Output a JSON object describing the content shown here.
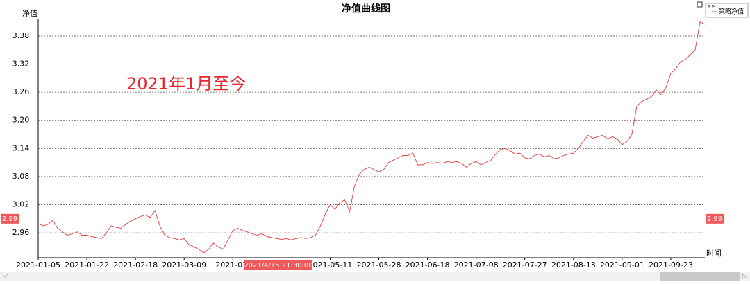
{
  "chart_data": {
    "type": "line",
    "title": "净值曲线图",
    "y_label": "净值",
    "x_label": "时间",
    "annotation": "2021年1月至今",
    "legend_toggle": ">>",
    "crosshair": {
      "y": 2.99,
      "x_label": "2021/4/15 21:30:00"
    },
    "ylim": [
      2.907,
      3.442
    ],
    "yticks": [
      2.96,
      3.02,
      3.08,
      3.14,
      {
        "value": 3.2,
        "label": "3.20"
      },
      3.26,
      3.32,
      3.38
    ],
    "grid": true,
    "categories": [
      "2021-01-05",
      null,
      null,
      null,
      null,
      null,
      null,
      null,
      null,
      null,
      "2021-01-22",
      null,
      null,
      null,
      null,
      null,
      null,
      null,
      null,
      null,
      "2021-02-18",
      null,
      null,
      null,
      null,
      null,
      null,
      null,
      null,
      null,
      "2021-03-09",
      null,
      null,
      null,
      null,
      null,
      null,
      null,
      null,
      null,
      "2021-03-",
      null,
      null,
      null,
      null,
      null,
      null,
      null,
      null,
      null,
      null,
      null,
      null,
      null,
      null,
      null,
      null,
      null,
      null,
      null,
      "2021-05-11",
      null,
      null,
      null,
      null,
      null,
      null,
      null,
      null,
      null,
      "2021-05-28",
      null,
      null,
      null,
      null,
      null,
      null,
      null,
      null,
      null,
      "2021-06-18",
      null,
      null,
      null,
      null,
      null,
      null,
      null,
      null,
      null,
      "2021-07-08",
      null,
      null,
      null,
      null,
      null,
      null,
      null,
      null,
      null,
      "2021-07-27",
      null,
      null,
      null,
      null,
      null,
      null,
      null,
      null,
      null,
      "2021-08-13",
      null,
      null,
      null,
      null,
      null,
      null,
      null,
      null,
      null,
      "2021-09-01",
      null,
      null,
      null,
      null,
      null,
      null,
      null,
      null,
      null,
      "2021-09-23",
      null,
      null,
      null,
      null,
      null,
      null,
      null
    ],
    "series": [
      {
        "name": "策略净值",
        "color": "#e03a3a",
        "values": [
          2.98,
          2.975,
          2.978,
          2.987,
          2.97,
          2.962,
          2.955,
          2.958,
          2.962,
          2.955,
          2.955,
          2.952,
          2.95,
          2.948,
          2.96,
          2.975,
          2.972,
          2.97,
          2.978,
          2.985,
          2.99,
          2.995,
          2.998,
          2.993,
          3.008,
          2.975,
          2.955,
          2.95,
          2.948,
          2.945,
          2.948,
          2.935,
          2.93,
          2.925,
          2.917,
          2.925,
          2.938,
          2.93,
          2.925,
          2.945,
          2.965,
          2.97,
          2.965,
          2.962,
          2.958,
          2.955,
          2.958,
          2.952,
          2.95,
          2.948,
          2.946,
          2.948,
          2.945,
          2.948,
          2.95,
          2.948,
          2.95,
          2.955,
          2.975,
          3.0,
          3.02,
          3.01,
          3.025,
          3.03,
          3.005,
          3.06,
          3.085,
          3.095,
          3.1,
          3.095,
          3.09,
          3.095,
          3.11,
          3.115,
          3.12,
          3.125,
          3.125,
          3.13,
          3.105,
          3.105,
          3.11,
          3.108,
          3.11,
          3.108,
          3.112,
          3.11,
          3.112,
          3.108,
          3.1,
          3.108,
          3.112,
          3.105,
          3.11,
          3.115,
          3.128,
          3.138,
          3.14,
          3.135,
          3.128,
          3.13,
          3.12,
          3.118,
          3.125,
          3.128,
          3.122,
          3.125,
          3.118,
          3.12,
          3.125,
          3.128,
          3.13,
          3.14,
          3.155,
          3.168,
          3.162,
          3.165,
          3.168,
          3.16,
          3.165,
          3.16,
          3.148,
          3.155,
          3.17,
          3.23,
          3.24,
          3.245,
          3.25,
          3.265,
          3.255,
          3.27,
          3.3,
          3.31,
          3.325,
          3.33,
          3.34,
          3.35,
          3.41,
          3.405
        ]
      }
    ]
  }
}
